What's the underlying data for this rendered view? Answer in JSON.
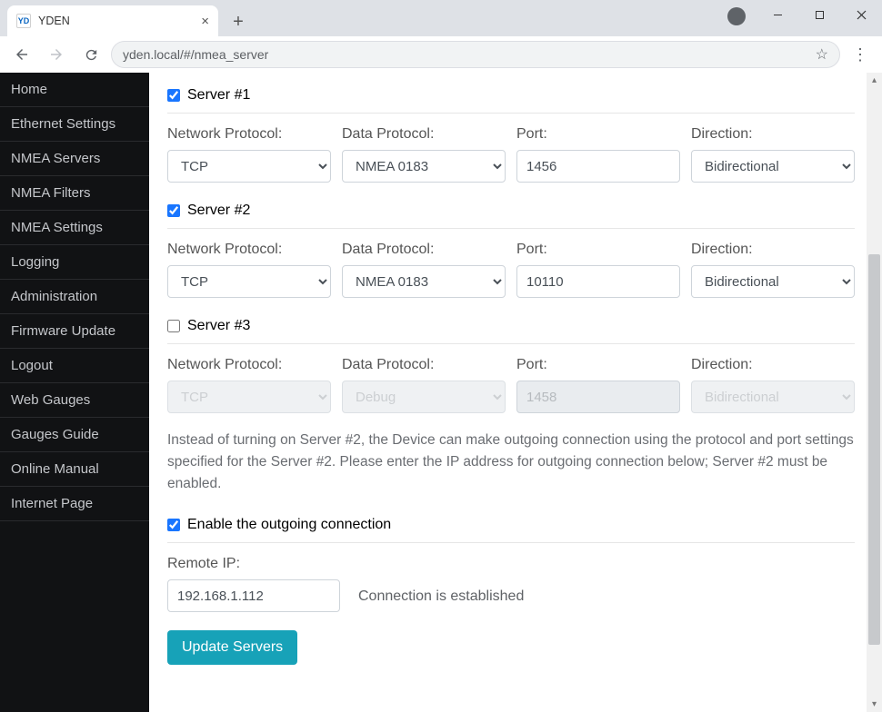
{
  "browser": {
    "tab_title": "YDEN",
    "favicon_text": "YD",
    "url": "yden.local/#/nmea_server"
  },
  "sidebar": {
    "items": [
      "Home",
      "Ethernet Settings",
      "NMEA Servers",
      "NMEA Filters",
      "NMEA Settings",
      "Logging",
      "Administration",
      "Firmware Update",
      "Logout",
      "Web Gauges",
      "Gauges Guide",
      "Online Manual",
      "Internet Page"
    ]
  },
  "labels": {
    "network_protocol": "Network Protocol:",
    "data_protocol": "Data Protocol:",
    "port": "Port:",
    "direction": "Direction:",
    "remote_ip": "Remote IP:"
  },
  "servers": [
    {
      "title": "Server #1",
      "enabled": true,
      "network_protocol": "TCP",
      "data_protocol": "NMEA 0183",
      "port": "1456",
      "direction": "Bidirectional",
      "disabled_fields": false
    },
    {
      "title": "Server #2",
      "enabled": true,
      "network_protocol": "TCP",
      "data_protocol": "NMEA 0183",
      "port": "10110",
      "direction": "Bidirectional",
      "disabled_fields": false
    },
    {
      "title": "Server #3",
      "enabled": false,
      "network_protocol": "TCP",
      "data_protocol": "Debug",
      "port": "1458",
      "direction": "Bidirectional",
      "disabled_fields": true
    }
  ],
  "help_text": "Instead of turning on Server #2, the Device can make outgoing connection using the protocol and port settings specified for the Server #2. Please enter the IP address for outgoing connection below; Server #2 must be enabled.",
  "outgoing": {
    "checkbox_label": "Enable the outgoing connection",
    "enabled": true,
    "remote_ip": "192.168.1.112",
    "status": "Connection is established"
  },
  "buttons": {
    "update": "Update Servers"
  },
  "colors": {
    "sidebar_bg": "#111214",
    "accent_checkbox": "#1976ff",
    "button_bg": "#17a2b8",
    "chrome_bg": "#dee1e6"
  }
}
